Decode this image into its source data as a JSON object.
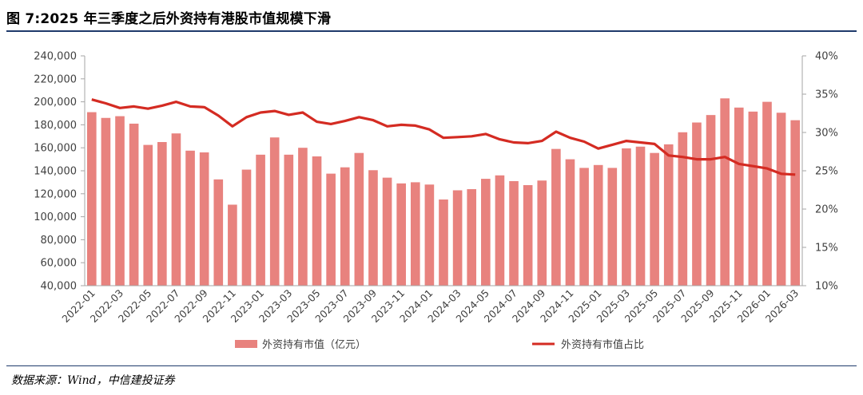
{
  "title": "图 7:2025 年三季度之后外资持有港股市值规模下滑",
  "source": "数据来源：Wind，中信建投证券",
  "colors": {
    "bar": "#e8827e",
    "line": "#d42b22",
    "axis": "#a6a6a6",
    "rule": "#1f3a6b"
  },
  "chart_data": {
    "type": "bar+line",
    "x": [
      "2022-01",
      "2022-02",
      "2022-03",
      "2022-04",
      "2022-05",
      "2022-06",
      "2022-07",
      "2022-08",
      "2022-09",
      "2022-10",
      "2022-11",
      "2022-12",
      "2023-01",
      "2023-02",
      "2023-03",
      "2023-04",
      "2023-05",
      "2023-06",
      "2023-07",
      "2023-08",
      "2023-09",
      "2023-10",
      "2023-11",
      "2023-12",
      "2024-01",
      "2024-02",
      "2024-03",
      "2024-04",
      "2024-05",
      "2024-06",
      "2024-07",
      "2024-08",
      "2024-09",
      "2024-10",
      "2024-11",
      "2024-12",
      "2025-01",
      "2025-02",
      "2025-03",
      "2025-04",
      "2025-05",
      "2025-06",
      "2025-07",
      "2025-08",
      "2025-09",
      "2025-10",
      "2025-11",
      "2025-12",
      "2026-01",
      "2026-02",
      "2026-03"
    ],
    "xtick_labels": [
      "2022-01",
      "2022-03",
      "2022-05",
      "2022-07",
      "2022-09",
      "2022-11",
      "2023-01",
      "2023-03",
      "2023-05",
      "2023-07",
      "2023-09",
      "2023-11",
      "2024-01",
      "2024-03",
      "2024-05",
      "2024-07",
      "2024-09",
      "2024-11",
      "2025-01",
      "2025-03",
      "2025-05",
      "2025-07",
      "2025-09",
      "2025-11",
      "2026-01",
      "2026-03"
    ],
    "series": [
      {
        "name": "外资持有市值（亿元）",
        "type": "bar",
        "axis": "left",
        "values": [
          191000,
          186000,
          187500,
          181000,
          162500,
          165000,
          172500,
          157500,
          156000,
          132500,
          110500,
          141000,
          154000,
          169000,
          154000,
          160000,
          152500,
          137500,
          143000,
          155500,
          140500,
          134000,
          129000,
          130000,
          128000,
          115000,
          123000,
          124000,
          133000,
          136000,
          131000,
          127500,
          131500,
          159000,
          150000,
          142500,
          145000,
          142500,
          159500,
          161000,
          155500,
          163000,
          173500,
          182000,
          188500,
          203000,
          195000,
          191500,
          200000,
          190500,
          184000
        ]
      },
      {
        "name": "外资持有市值占比",
        "type": "line",
        "axis": "right",
        "values": [
          34.3,
          33.8,
          33.2,
          33.4,
          33.1,
          33.5,
          34.0,
          33.4,
          33.3,
          32.2,
          30.8,
          32.0,
          32.6,
          32.8,
          32.3,
          32.6,
          31.4,
          31.1,
          31.5,
          32.0,
          31.6,
          30.8,
          31.0,
          30.9,
          30.4,
          29.3,
          29.4,
          29.5,
          29.8,
          29.1,
          28.7,
          28.6,
          28.9,
          30.1,
          29.3,
          28.8,
          27.9,
          28.4,
          28.9,
          28.7,
          28.5,
          27.0,
          26.8,
          26.5,
          26.5,
          26.8,
          25.9,
          25.6,
          25.3,
          24.6,
          24.5
        ]
      }
    ],
    "y_left": {
      "min": 40000,
      "max": 240000,
      "step": 20000,
      "ticks": [
        "40,000",
        "60,000",
        "80,000",
        "100,000",
        "120,000",
        "140,000",
        "160,000",
        "180,000",
        "200,000",
        "220,000",
        "240,000"
      ]
    },
    "y_right": {
      "min": 10,
      "max": 40,
      "step": 5,
      "ticks": [
        "10%",
        "15%",
        "20%",
        "25%",
        "30%",
        "35%",
        "40%"
      ]
    },
    "legend_position": "bottom",
    "grid": false
  }
}
